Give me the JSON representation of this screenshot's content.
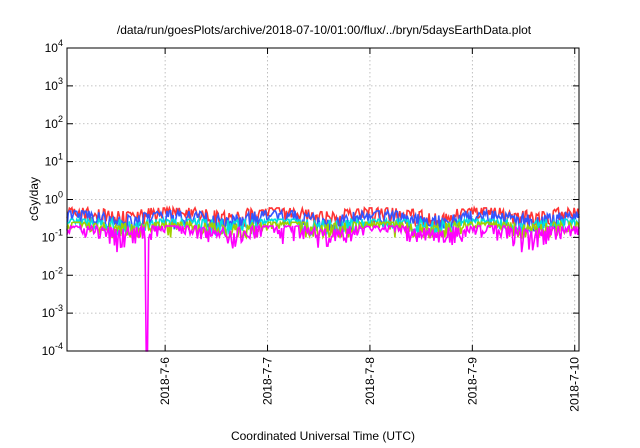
{
  "chart_data": {
    "type": "area",
    "title": "/data/run/goesPlots/archive/2018-07-10/01:00/flux/../bryn/5daysEarthData.plot",
    "xlabel": "Coordinated Universal Time (UTC)",
    "ylabel": "cGy/day",
    "yscale": "log",
    "ylim": [
      0.0001,
      10000
    ],
    "yticks": [
      {
        "base": "10",
        "exp": "-4",
        "value": 0.0001
      },
      {
        "base": "10",
        "exp": "-3",
        "value": 0.001
      },
      {
        "base": "10",
        "exp": "-2",
        "value": 0.01
      },
      {
        "base": "10",
        "exp": "-1",
        "value": 0.1
      },
      {
        "base": "10",
        "exp": "0",
        "value": 1
      },
      {
        "base": "10",
        "exp": "1",
        "value": 10
      },
      {
        "base": "10",
        "exp": "2",
        "value": 100
      },
      {
        "base": "10",
        "exp": "3",
        "value": 1000
      },
      {
        "base": "10",
        "exp": "4",
        "value": 10000
      }
    ],
    "xlim": [
      "2018-07-05T01:00",
      "2018-07-10T01:00"
    ],
    "xticks": [
      "2018-7-6",
      "2018-7-7",
      "2018-7-8",
      "2018-7-9",
      "2018-7-10"
    ],
    "grid": true,
    "series": [
      {
        "color": "#ff3333",
        "typical": 0.42,
        "min": 0.2,
        "max": 0.6
      },
      {
        "color": "#3355ff",
        "typical": 0.33,
        "min": 0.15,
        "max": 0.5
      },
      {
        "color": "#00e0e0",
        "typical": 0.24,
        "min": 0.12,
        "max": 0.3
      },
      {
        "color": "#a0d000",
        "typical": 0.2,
        "min": 0.1,
        "max": 0.25
      },
      {
        "color": "#ff00ff",
        "typical": 0.15,
        "min": 0.04,
        "max": 0.2
      }
    ],
    "dropout": {
      "series_color": "#ff00ff",
      "x_start": "2018-07-05T19:30",
      "x_end": "2018-07-05T20:00",
      "value": 0.0001
    }
  }
}
